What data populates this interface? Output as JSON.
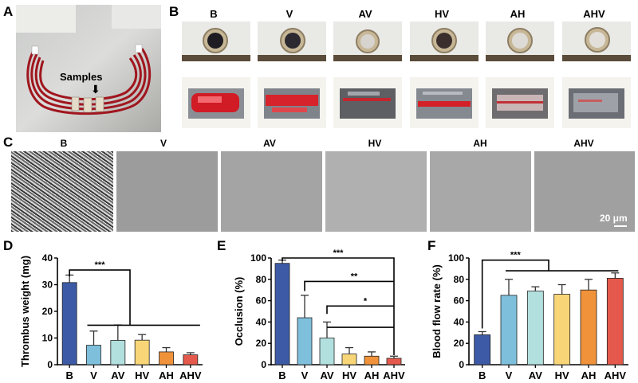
{
  "panels": {
    "a": {
      "letter": "A",
      "annotation": "Samples",
      "arrow_icon": "down-arrow-icon"
    },
    "b": {
      "letter": "B",
      "groups": [
        "B",
        "V",
        "AV",
        "HV",
        "AH",
        "AHV"
      ]
    },
    "c": {
      "letter": "C",
      "groups": [
        "B",
        "V",
        "AV",
        "HV",
        "AH",
        "AHV"
      ],
      "scale_bar": "20 μm"
    },
    "d": {
      "letter": "D"
    },
    "e": {
      "letter": "E"
    },
    "f": {
      "letter": "F"
    }
  },
  "chart_data": [
    {
      "panel": "D",
      "type": "bar",
      "categories": [
        "B",
        "V",
        "AV",
        "HV",
        "AH",
        "AHV"
      ],
      "values": [
        30.8,
        7.3,
        9.1,
        9.2,
        4.8,
        3.7
      ],
      "errors": [
        2.8,
        5.3,
        5.8,
        2.1,
        1.6,
        0.8
      ],
      "colors": [
        "#3c5aa6",
        "#7ec0dc",
        "#b2e0de",
        "#f8d678",
        "#f0923a",
        "#e4594b"
      ],
      "xlabel": "",
      "ylabel": "Thrombus weight (mg)",
      "ylim": [
        0,
        40
      ],
      "yticks": [
        0,
        10,
        20,
        30,
        40
      ],
      "grid": false,
      "significance": [
        {
          "label": "***",
          "between": "B vs V–AHV"
        }
      ]
    },
    {
      "panel": "E",
      "type": "bar",
      "categories": [
        "B",
        "V",
        "AV",
        "HV",
        "AH",
        "AHV"
      ],
      "values": [
        95,
        44,
        25,
        10,
        8,
        6
      ],
      "errors": [
        3,
        21,
        15,
        6,
        4,
        2
      ],
      "colors": [
        "#3c5aa6",
        "#7ec0dc",
        "#b2e0de",
        "#f8d678",
        "#f0923a",
        "#e4594b"
      ],
      "xlabel": "",
      "ylabel": "Occlusion (%)",
      "ylim": [
        0,
        100
      ],
      "yticks": [
        0,
        20,
        40,
        60,
        80,
        100
      ],
      "grid": false,
      "significance": [
        {
          "label": "***",
          "between": "B vs AHV"
        },
        {
          "label": "**",
          "between": "V vs AHV"
        },
        {
          "label": "*",
          "between": "AV vs AHV"
        }
      ]
    },
    {
      "panel": "F",
      "type": "bar",
      "categories": [
        "B",
        "V",
        "AV",
        "HV",
        "AH",
        "AHV"
      ],
      "values": [
        28,
        65,
        69,
        66,
        70,
        81
      ],
      "errors": [
        3,
        15,
        4,
        9,
        10,
        5
      ],
      "colors": [
        "#3c5aa6",
        "#7ec0dc",
        "#b2e0de",
        "#f8d678",
        "#f0923a",
        "#e4594b"
      ],
      "xlabel": "",
      "ylabel": "Blood flow rate (%)",
      "ylim": [
        0,
        100
      ],
      "yticks": [
        0,
        20,
        40,
        60,
        80,
        100
      ],
      "grid": false,
      "significance": [
        {
          "label": "***",
          "between": "B vs V–AHV"
        }
      ]
    }
  ]
}
